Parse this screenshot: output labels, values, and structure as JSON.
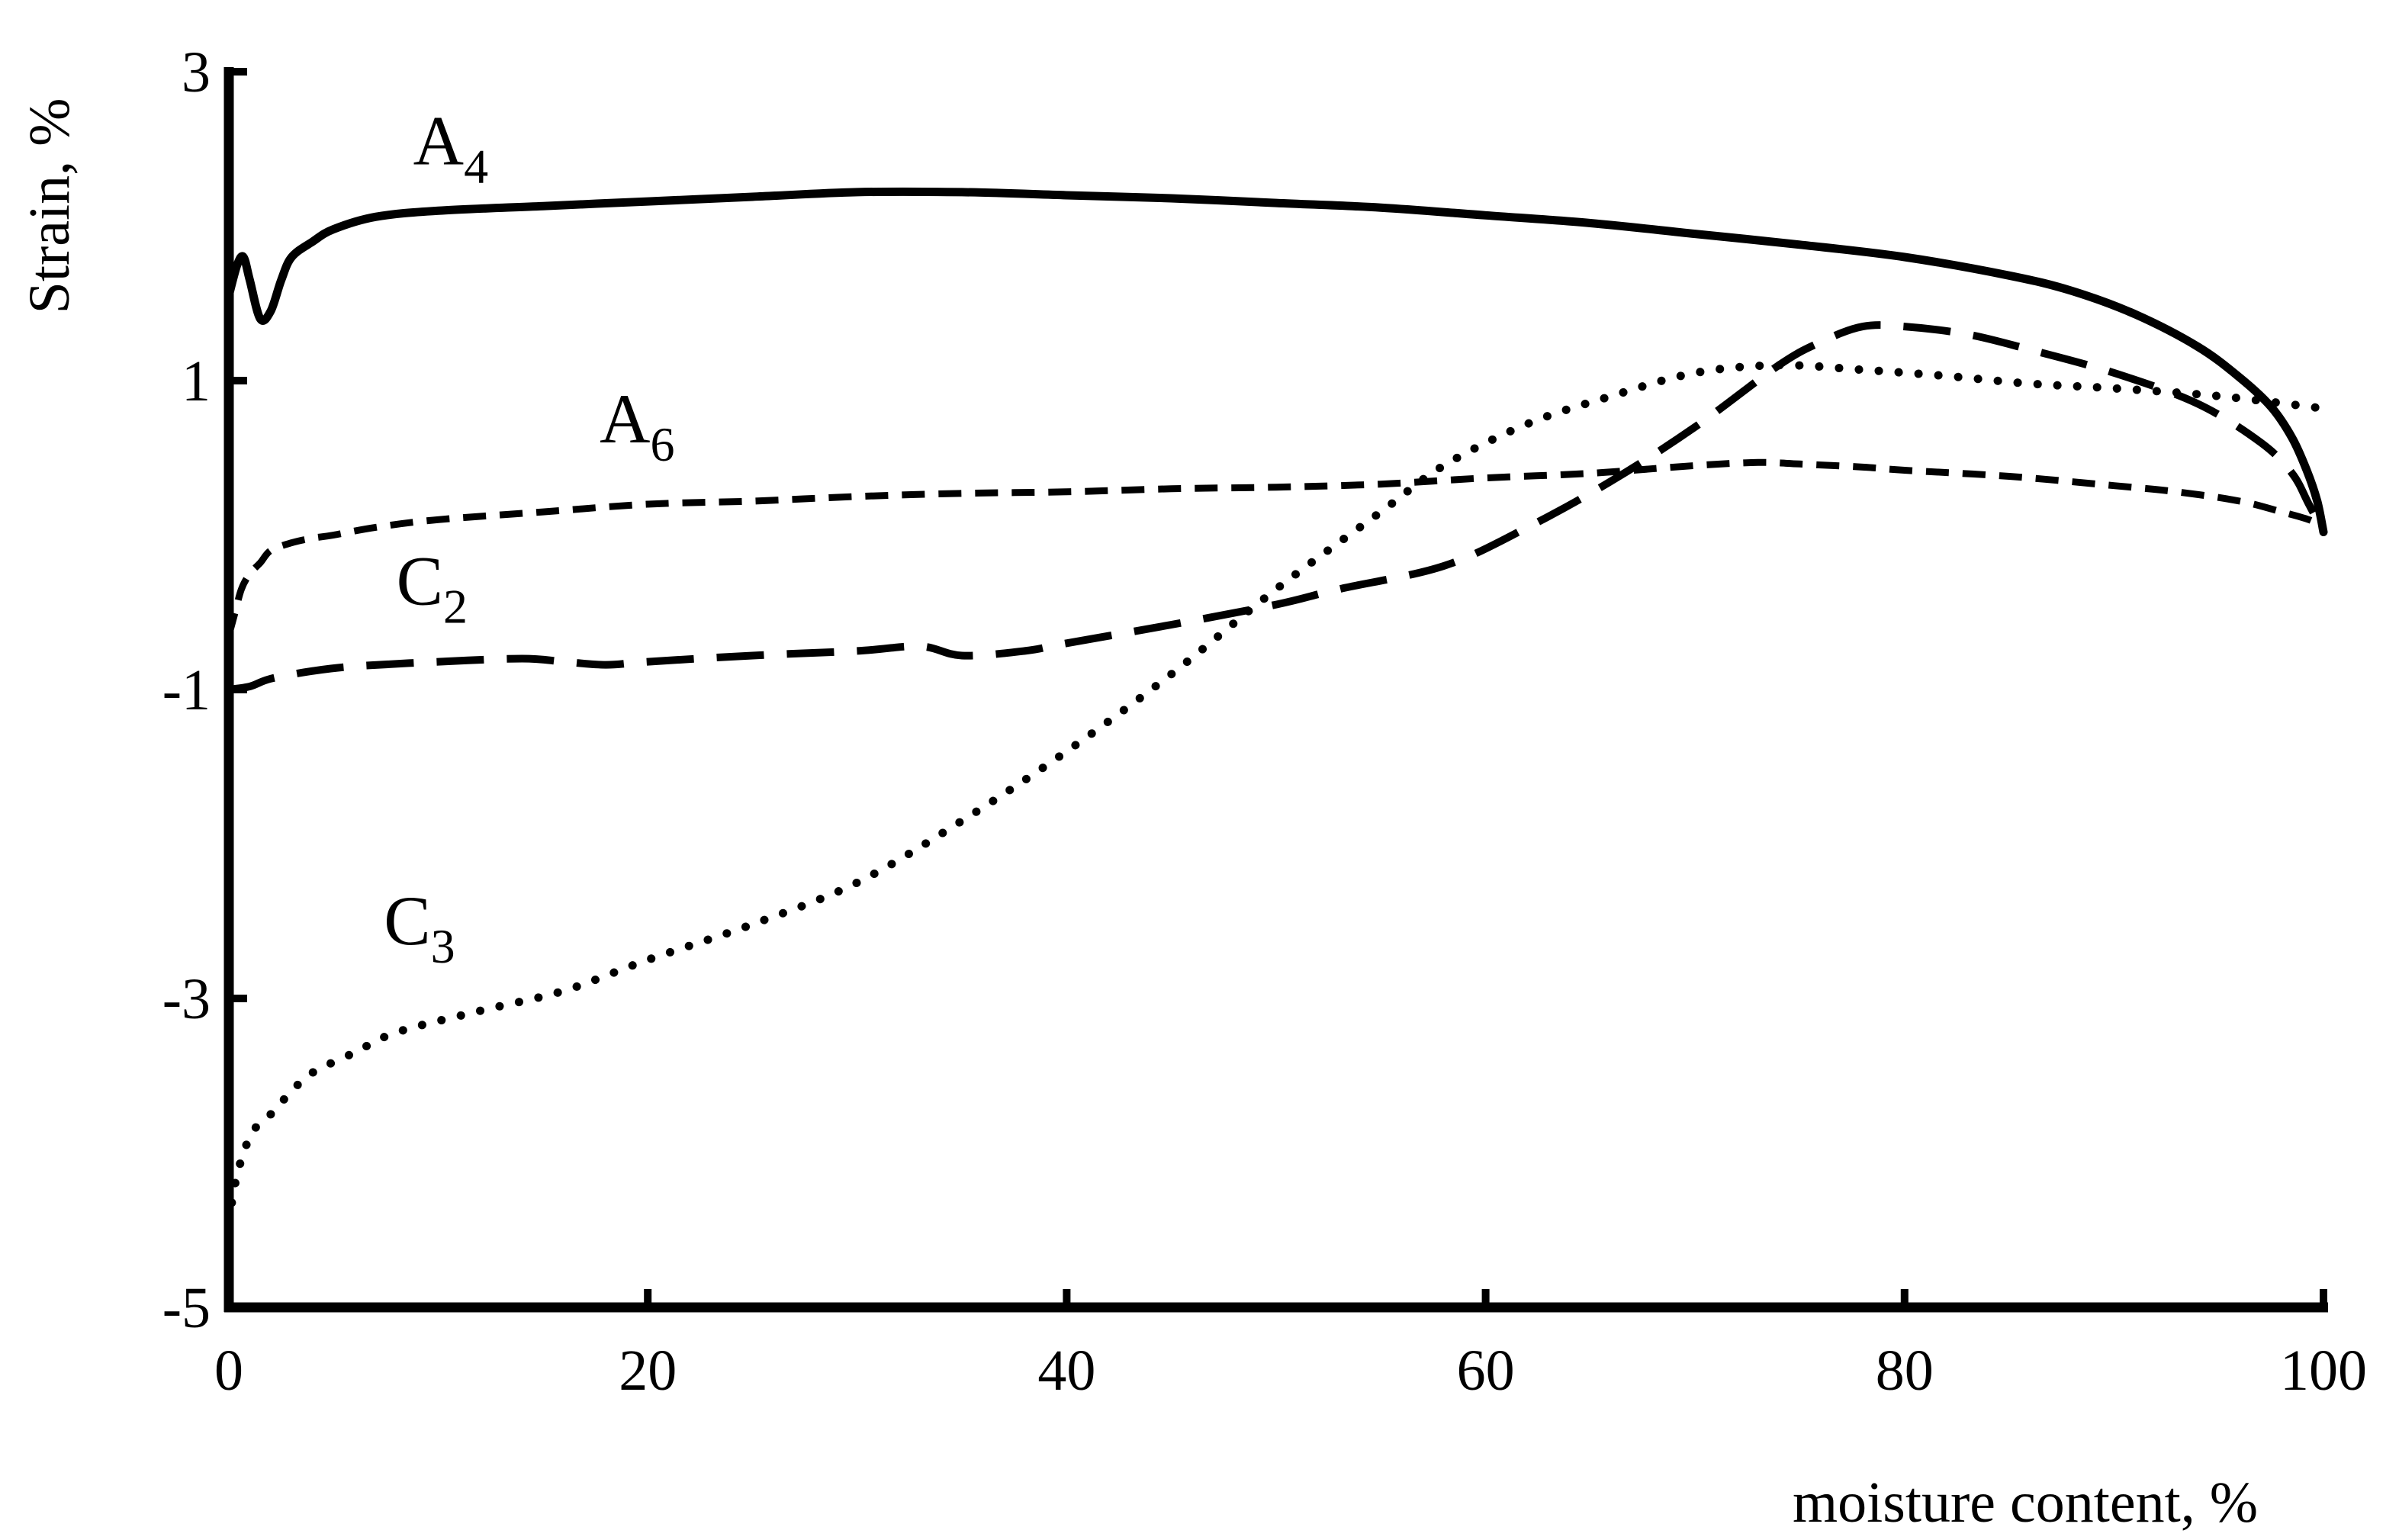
{
  "chart_data": {
    "type": "line",
    "title": "",
    "xlabel": "moisture content, %",
    "ylabel": "Strain, %",
    "xlim": [
      0,
      100
    ],
    "ylim": [
      -5,
      3
    ],
    "x_ticks": [
      0,
      20,
      40,
      60,
      80,
      100
    ],
    "y_ticks": [
      -5,
      -3,
      -1,
      1,
      3
    ],
    "x_tick_labels": [
      "0",
      "20",
      "40",
      "60",
      "80",
      "100"
    ],
    "y_tick_labels": [
      "-5",
      "-3",
      "-1",
      "1",
      "3"
    ],
    "grid": false,
    "legend": "inline labels",
    "series": [
      {
        "name": "A4",
        "label_main": "A",
        "label_sub": "4",
        "style": "solid",
        "color": "#000000",
        "x": [
          0,
          0.4,
          0.7,
          1.0,
          1.5,
          2.0,
          2.5,
          3.0,
          4.0,
          5.0,
          7.0,
          10.0,
          15.0,
          20.0,
          25.0,
          30.0,
          35.0,
          40.0,
          45.0,
          50.0,
          55.0,
          60.0,
          65.0,
          70.0,
          75.0,
          80.0,
          85.0,
          88.0,
          91.0,
          94.0,
          96.0,
          97.5,
          98.5,
          99.2,
          99.7,
          100.0
        ],
        "y": [
          1.55,
          1.75,
          1.8,
          1.65,
          1.4,
          1.45,
          1.65,
          1.8,
          1.9,
          1.98,
          2.06,
          2.1,
          2.13,
          2.16,
          2.19,
          2.22,
          2.22,
          2.2,
          2.18,
          2.15,
          2.12,
          2.07,
          2.02,
          1.95,
          1.88,
          1.8,
          1.68,
          1.58,
          1.43,
          1.22,
          1.02,
          0.83,
          0.63,
          0.42,
          0.22,
          0.02
        ]
      },
      {
        "name": "A6",
        "label_main": "A",
        "label_sub": "6",
        "style": "short-dash",
        "color": "#000000",
        "x": [
          0,
          0.3,
          0.6,
          1.0,
          1.5,
          2.0,
          3.0,
          4.0,
          5.0,
          7.0,
          10.0,
          15.0,
          20.0,
          25.0,
          30.0,
          35.0,
          40.0,
          45.0,
          50.0,
          55.0,
          60.0,
          65.0,
          70.0,
          73.0,
          75.0,
          78.0,
          80.0,
          85.0,
          90.0,
          93.0,
          96.0,
          98.0,
          99.3,
          100.0
        ],
        "y": [
          -0.65,
          -0.5,
          -0.35,
          -0.25,
          -0.18,
          -0.1,
          -0.05,
          -0.02,
          0.0,
          0.05,
          0.1,
          0.15,
          0.2,
          0.22,
          0.25,
          0.27,
          0.28,
          0.3,
          0.31,
          0.33,
          0.37,
          0.4,
          0.45,
          0.47,
          0.46,
          0.44,
          0.42,
          0.38,
          0.32,
          0.28,
          0.22,
          0.15,
          0.1,
          0.05
        ]
      },
      {
        "name": "C2",
        "label_main": "C",
        "label_sub": "2",
        "style": "long-dash",
        "color": "#000000",
        "x": [
          0,
          1.0,
          2.0,
          4.0,
          6.0,
          10.0,
          14.0,
          16.0,
          18.0,
          20.0,
          25.0,
          30.0,
          33.0,
          35.0,
          38.0,
          40.0,
          45.0,
          50.0,
          53.0,
          58.0,
          62.0,
          66.0,
          70.0,
          74.0,
          76.0,
          78.0,
          80.0,
          83.0,
          86.0,
          90.0,
          94.0,
          97.0,
          98.5,
          99.3,
          100.0
        ],
        "y": [
          -1.0,
          -0.98,
          -0.93,
          -0.88,
          -0.85,
          -0.82,
          -0.8,
          -0.82,
          -0.84,
          -0.82,
          -0.78,
          -0.75,
          -0.72,
          -0.78,
          -0.75,
          -0.7,
          -0.58,
          -0.45,
          -0.35,
          -0.2,
          0.05,
          0.35,
          0.7,
          1.1,
          1.25,
          1.35,
          1.35,
          1.3,
          1.2,
          1.05,
          0.85,
          0.6,
          0.4,
          0.2,
          0.02
        ]
      },
      {
        "name": "C3",
        "label_main": "C",
        "label_sub": "3",
        "style": "dotted",
        "color": "#000000",
        "x": [
          0,
          0.3,
          0.7,
          1.2,
          2.0,
          3.0,
          4.0,
          6.0,
          8.0,
          12.0,
          16.0,
          20.0,
          25.0,
          30.0,
          35.0,
          40.0,
          45.0,
          50.0,
          55.0,
          58.0,
          62.0,
          66.0,
          70.0,
          74.0,
          78.0,
          82.0,
          86.0,
          90.0,
          95.0,
          100.0
        ],
        "y": [
          -4.45,
          -4.2,
          -4.0,
          -3.85,
          -3.75,
          -3.6,
          -3.48,
          -3.35,
          -3.22,
          -3.08,
          -2.95,
          -2.75,
          -2.52,
          -2.25,
          -1.85,
          -1.4,
          -0.9,
          -0.35,
          0.15,
          0.45,
          0.72,
          0.9,
          1.05,
          1.1,
          1.07,
          1.03,
          0.98,
          0.95,
          0.9,
          0.82
        ]
      }
    ]
  }
}
